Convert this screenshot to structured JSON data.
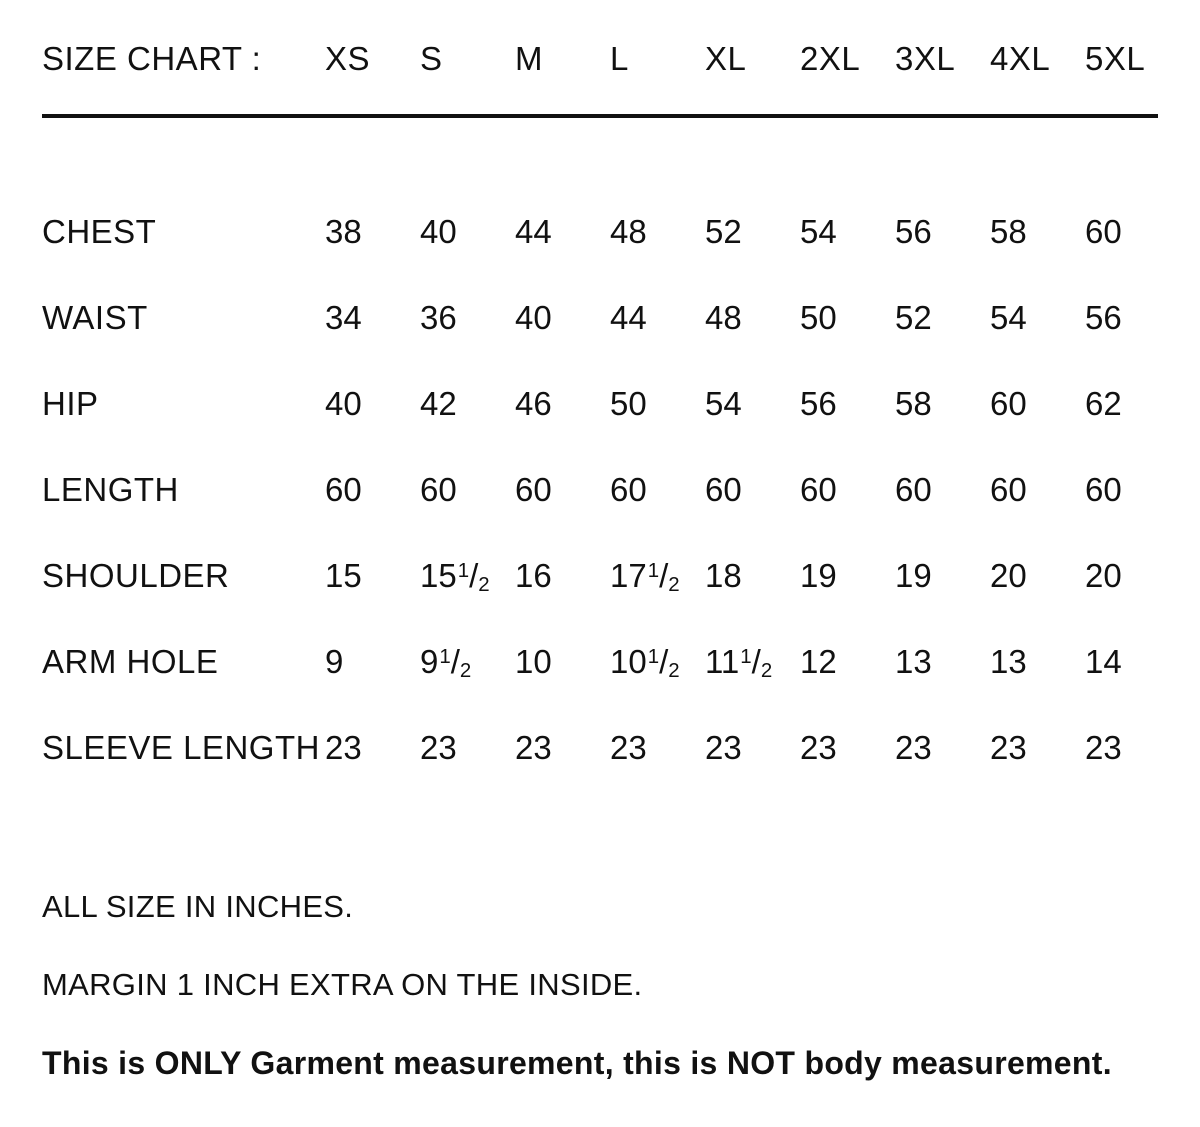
{
  "size_chart": {
    "title": "SIZE CHART :",
    "columns": [
      "XS",
      "S",
      "M",
      "L",
      "XL",
      "2XL",
      "3XL",
      "4XL",
      "5XL"
    ],
    "rows": [
      {
        "label": "CHEST",
        "values": [
          "38",
          "40",
          "44",
          "48",
          "52",
          "54",
          "56",
          "58",
          "60"
        ]
      },
      {
        "label": "WAIST",
        "values": [
          "34",
          "36",
          "40",
          "44",
          "48",
          "50",
          "52",
          "54",
          "56"
        ]
      },
      {
        "label": "HIP",
        "values": [
          "40",
          "42",
          "46",
          "50",
          "54",
          "56",
          "58",
          "60",
          "62"
        ]
      },
      {
        "label": "LENGTH",
        "values": [
          "60",
          "60",
          "60",
          "60",
          "60",
          "60",
          "60",
          "60",
          "60"
        ]
      },
      {
        "label": "SHOULDER",
        "values": [
          "15",
          "15 1/2",
          "16",
          "17 1/2",
          "18",
          "19",
          "19",
          "20",
          "20"
        ]
      },
      {
        "label": "ARM HOLE",
        "values": [
          "9",
          "9 1/2",
          "10",
          "10 1/2",
          "11 1/2",
          "12",
          "13",
          "13",
          "14"
        ]
      },
      {
        "label": "SLEEVE LENGTH",
        "values": [
          "23",
          "23",
          "23",
          "23",
          "23",
          "23",
          "23",
          "23",
          "23"
        ]
      }
    ]
  },
  "notes": [
    {
      "text": "ALL SIZE IN INCHES.",
      "bold": false
    },
    {
      "text": "MARGIN 1 INCH EXTRA ON THE INSIDE.",
      "bold": false
    },
    {
      "text": "This is ONLY Garment measurement, this is NOT body measurement.",
      "bold": true
    }
  ],
  "colors": {
    "text": "#111111",
    "background": "#ffffff",
    "divider": "#111111"
  }
}
